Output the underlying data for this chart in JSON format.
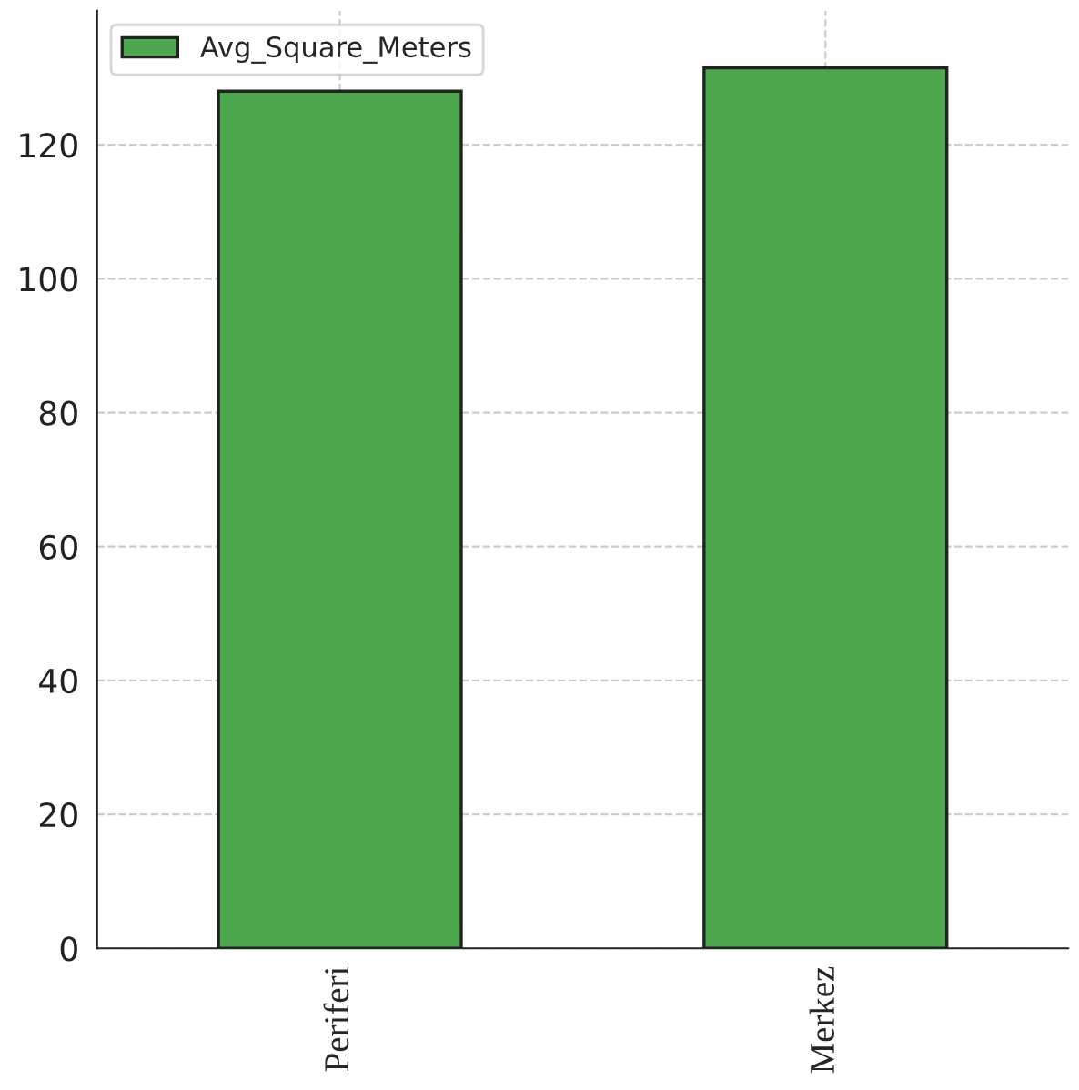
{
  "chart_data": {
    "type": "bar",
    "categories": [
      "Periferi",
      "Merkez"
    ],
    "series": [
      {
        "name": "Avg_Square_Meters",
        "color": "#4ca64c",
        "values": [
          128,
          131.5
        ]
      }
    ],
    "ylim": [
      0,
      140
    ],
    "yticks": [
      0,
      20,
      40,
      60,
      80,
      100,
      120
    ],
    "grid": true,
    "legend": "top left"
  }
}
